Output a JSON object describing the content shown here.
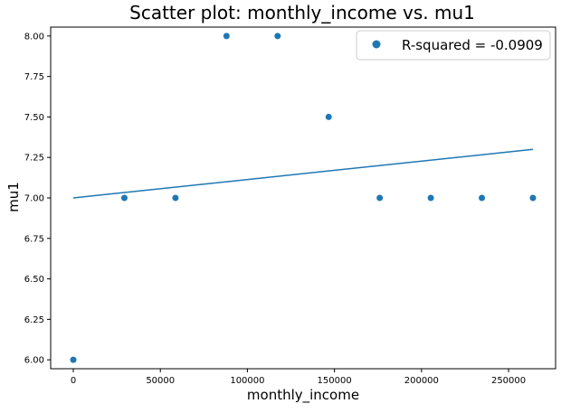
{
  "chart_data": {
    "type": "scatter",
    "title": "Scatter plot: monthly_income vs. mu1",
    "xlabel": "monthly_income",
    "ylabel": "mu1",
    "xlim": [
      -13000,
      277000
    ],
    "ylim": [
      5.945,
      8.055
    ],
    "x_ticks": [
      0,
      50000,
      100000,
      150000,
      200000,
      250000
    ],
    "x_tick_labels": [
      "0",
      "50000",
      "100000",
      "150000",
      "200000",
      "250000"
    ],
    "y_ticks": [
      6.0,
      6.25,
      6.5,
      6.75,
      7.0,
      7.25,
      7.5,
      7.75,
      8.0
    ],
    "y_tick_labels": [
      "6.00",
      "6.25",
      "6.50",
      "6.75",
      "7.00",
      "7.25",
      "7.50",
      "7.75",
      "8.00"
    ],
    "grid": false,
    "legend_position": "upper right",
    "series": [
      {
        "name": "R-squared = -0.0909",
        "kind": "scatter",
        "color": "#1f77b4",
        "x": [
          0,
          29333,
          58667,
          88000,
          117333,
          146667,
          176000,
          205333,
          234667,
          264000
        ],
        "y": [
          6.0,
          7.0,
          7.0,
          8.0,
          8.0,
          7.5,
          7.0,
          7.0,
          7.0,
          7.0
        ]
      },
      {
        "kind": "line",
        "color": "#1f77b4",
        "x": [
          0,
          264000
        ],
        "y": [
          7.0,
          7.3
        ]
      }
    ]
  }
}
